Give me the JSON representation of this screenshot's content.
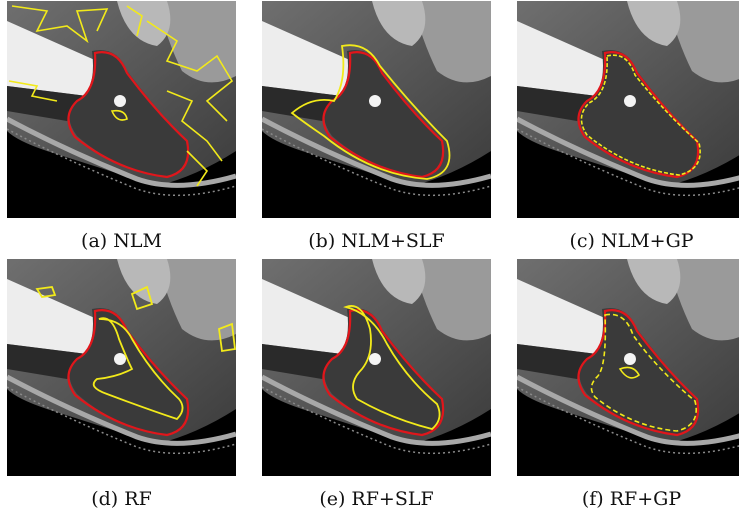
{
  "figure": {
    "panels": [
      {
        "caption": "(a) NLM",
        "method": "NLM"
      },
      {
        "caption": "(b) NLM+SLF",
        "method": "NLM+SLF"
      },
      {
        "caption": "(c) NLM+GP",
        "method": "NLM+GP"
      },
      {
        "caption": "(d) RF",
        "method": "RF"
      },
      {
        "caption": "(e) RF+SLF",
        "method": "RF+SLF"
      },
      {
        "caption": "(f) RF+GP",
        "method": "RF+GP"
      }
    ],
    "colors": {
      "ground_truth_contour": "#e0161b",
      "segmentation_contour": "#f2ea1a",
      "background": "#000000"
    }
  }
}
